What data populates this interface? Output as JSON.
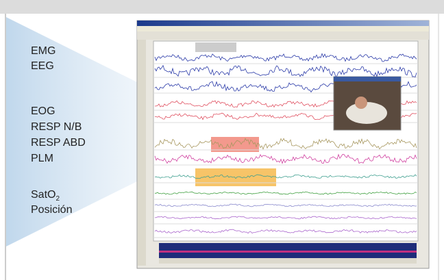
{
  "labels": [
    "EMG",
    "EEG",
    "EOG",
    "RESP N/B",
    "RESP ABD",
    "PLM",
    {
      "text": "SatO",
      "subscript": "2"
    },
    "Posición"
  ]
}
